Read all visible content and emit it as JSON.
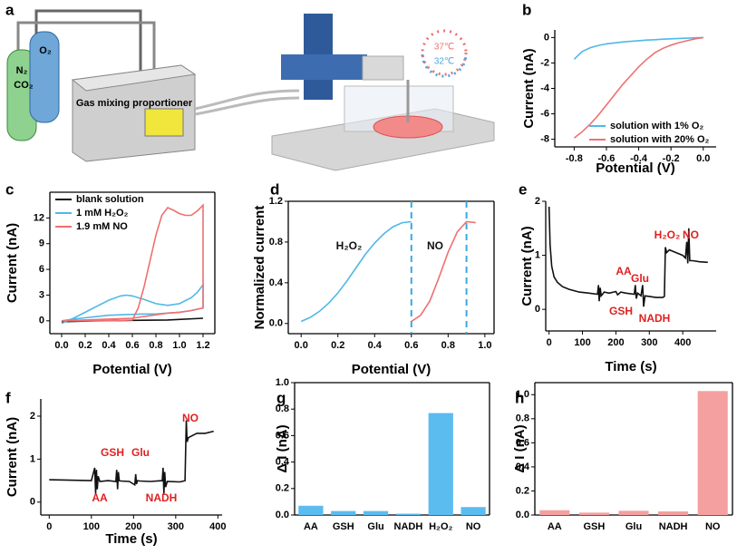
{
  "diagram": {
    "label": "a",
    "o2": "O₂",
    "n2": "N₂",
    "co2": "CO₂",
    "device": "Gas mixing proportioner",
    "t_high": "37℃",
    "t_low": "32℃"
  },
  "chart_data": [
    {
      "type": "line",
      "label": "b",
      "xlabel": "Potential (V)",
      "ylabel": "Current (nA)",
      "frame": "axes",
      "legend": "lower right",
      "x": [
        -0.8,
        -0.75,
        -0.7,
        -0.65,
        -0.6,
        -0.55,
        -0.5,
        -0.45,
        -0.4,
        -0.35,
        -0.3,
        -0.25,
        -0.2,
        -0.15,
        -0.1,
        -0.05,
        0
      ],
      "series": [
        {
          "name": "solution with 1% O₂",
          "color": "#4fb8e8",
          "values": [
            -1.7,
            -1.1,
            -0.8,
            -0.62,
            -0.5,
            -0.42,
            -0.35,
            -0.3,
            -0.25,
            -0.2,
            -0.17,
            -0.13,
            -0.1,
            -0.07,
            -0.05,
            -0.02,
            0
          ]
        },
        {
          "name": "solution with 20% O₂",
          "color": "#f07070",
          "values": [
            -7.9,
            -7.4,
            -6.8,
            -6.1,
            -5.3,
            -4.5,
            -3.7,
            -3.0,
            -2.3,
            -1.7,
            -1.2,
            -0.85,
            -0.6,
            -0.4,
            -0.25,
            -0.1,
            0
          ]
        }
      ],
      "xlim": [
        -0.92,
        0.08
      ],
      "xticks": [
        -0.8,
        -0.6,
        -0.4,
        -0.2,
        {
          "value": 0,
          "label": "0.0"
        }
      ],
      "ylim": [
        -8.6,
        0.6
      ],
      "yticks": [
        0,
        -2,
        -4,
        -6,
        -8
      ]
    },
    {
      "type": "line",
      "label": "c",
      "xlabel": "Potential (V)",
      "ylabel": "Current (nA)",
      "frame": "box",
      "legend": "upper left",
      "series": [
        {
          "name": "blank solution",
          "color": "#111111",
          "x": [
            0,
            0.3,
            0.6,
            0.9,
            1.2
          ],
          "values": [
            -0.1,
            0,
            0.05,
            0.1,
            0.3
          ]
        },
        {
          "name": "1 mM H₂O₂",
          "color": "#4fb8e8",
          "x": [
            0,
            0.1,
            0.2,
            0.3,
            0.4,
            0.5,
            0.55,
            0.6,
            0.7,
            0.8,
            0.9,
            1.0,
            1.1,
            1.15,
            1.2,
            1.2,
            1.1,
            1.0,
            0.9,
            0.8,
            0.7,
            0.6,
            0.5,
            0.4,
            0.3,
            0.2,
            0.1,
            0
          ],
          "values": [
            -0.3,
            0.3,
            1.0,
            1.7,
            2.4,
            2.9,
            3.0,
            2.9,
            2.5,
            2.0,
            1.8,
            2.0,
            2.7,
            3.3,
            4.2,
            1.5,
            1.2,
            1.0,
            0.9,
            0.8,
            0.8,
            0.75,
            0.7,
            0.65,
            0.5,
            0.35,
            0.2,
            0
          ]
        },
        {
          "name": "1.9 mM NO",
          "color": "#f07070",
          "x": [
            0,
            0.2,
            0.4,
            0.6,
            0.65,
            0.7,
            0.75,
            0.8,
            0.85,
            0.9,
            0.95,
            1.0,
            1.05,
            1.1,
            1.15,
            1.2,
            1.2,
            1.1,
            1.0,
            0.9,
            0.8,
            0.7,
            0.6,
            0.4,
            0.2,
            0
          ],
          "values": [
            0,
            0,
            0,
            0.1,
            1.5,
            4.0,
            7.0,
            10.0,
            12.3,
            13.2,
            12.9,
            12.5,
            12.3,
            12.3,
            12.8,
            13.5,
            1.5,
            1.2,
            1.0,
            0.9,
            0.7,
            0.5,
            0.3,
            0.2,
            0.1,
            0
          ]
        }
      ],
      "xlim": [
        -0.1,
        1.3
      ],
      "xticks": [
        {
          "value": 0,
          "label": "0.0"
        },
        0.2,
        0.4,
        0.6,
        0.8,
        {
          "value": 1,
          "label": "1.0"
        },
        1.2
      ],
      "ylim": [
        -1.5,
        15
      ],
      "yticks": [
        0,
        3,
        6,
        9,
        12
      ]
    },
    {
      "type": "line",
      "label": "d",
      "xlabel": "Potential (V)",
      "ylabel": "Normalized current",
      "frame": "box",
      "annotations": [
        "H₂O₂",
        "NO"
      ],
      "annotation_color": "#111111",
      "series": [
        {
          "color": "#4fb8e8",
          "x": [
            0,
            0.05,
            0.1,
            0.15,
            0.2,
            0.25,
            0.3,
            0.35,
            0.4,
            0.45,
            0.5,
            0.55,
            0.6
          ],
          "values": [
            0.02,
            0.06,
            0.12,
            0.2,
            0.3,
            0.42,
            0.55,
            0.68,
            0.79,
            0.88,
            0.95,
            0.99,
            1.0
          ]
        },
        {
          "color": "#f07070",
          "x": [
            0.6,
            0.65,
            0.7,
            0.75,
            0.8,
            0.85,
            0.9,
            0.95
          ],
          "values": [
            0.02,
            0.08,
            0.22,
            0.45,
            0.7,
            0.9,
            1.0,
            0.99
          ]
        }
      ],
      "vlines": [
        0.6,
        0.9
      ],
      "vline_color": "#3aa8e0",
      "xlim": [
        -0.07,
        1.05
      ],
      "xticks": [
        {
          "value": 0,
          "label": "0.0"
        },
        0.2,
        0.4,
        0.6,
        0.8,
        {
          "value": 1,
          "label": "1.0"
        }
      ],
      "ylim": [
        -0.1,
        1.2
      ],
      "yticks": [
        {
          "value": 0,
          "label": "0.0"
        },
        0.4,
        0.8,
        1.2
      ]
    },
    {
      "type": "line",
      "label": "e",
      "xlabel": "Time (s)",
      "ylabel": "Current (nA)",
      "frame": "axes",
      "annotations": [
        "AA",
        "GSH",
        "Glu",
        "NADH",
        "H₂O₂",
        "NO"
      ],
      "annotation_color": "#e02020",
      "x": [
        0,
        3,
        8,
        15,
        25,
        40,
        60,
        90,
        120,
        145,
        148,
        150,
        153,
        156,
        165,
        180,
        200,
        205,
        215,
        230,
        255,
        258,
        261,
        265,
        275,
        280,
        283,
        287,
        300,
        320,
        340,
        345,
        348,
        352,
        360,
        380,
        400,
        408,
        412,
        415,
        418,
        421,
        430,
        450,
        475
      ],
      "series": [
        {
          "color": "#111111",
          "values": [
            1.9,
            1.2,
            0.8,
            0.6,
            0.5,
            0.42,
            0.37,
            0.32,
            0.3,
            0.28,
            0.45,
            0.15,
            0.4,
            0.25,
            0.32,
            0.3,
            0.33,
            0.27,
            0.32,
            0.3,
            0.28,
            0.45,
            0.2,
            0.3,
            0.25,
            0.45,
            0.05,
            0.25,
            0.24,
            0.22,
            0.22,
            0.24,
            1.15,
            1.05,
            1.1,
            1.05,
            1.0,
            0.95,
            1.25,
            0.85,
            1.5,
            0.9,
            0.9,
            0.88,
            0.87
          ]
        }
      ],
      "xlim": [
        -10,
        500
      ],
      "xticks": [
        0,
        100,
        200,
        300,
        400
      ],
      "ylim": [
        -0.4,
        2
      ],
      "yticks": [
        0,
        1,
        2
      ]
    },
    {
      "type": "line",
      "label": "f",
      "xlabel": "Time (s)",
      "ylabel": "Current (nA)",
      "frame": "axes",
      "annotations": [
        "GSH",
        "Glu",
        "AA",
        "NADH",
        "NO"
      ],
      "annotation_color": "#e02020",
      "x": [
        0,
        50,
        100,
        108,
        110,
        112,
        114,
        116,
        120,
        140,
        158,
        160,
        162,
        164,
        166,
        170,
        190,
        203,
        205,
        207,
        209,
        215,
        240,
        268,
        270,
        272,
        274,
        276,
        280,
        310,
        322,
        325,
        327,
        330,
        340,
        350,
        370,
        390
      ],
      "series": [
        {
          "color": "#111111",
          "values": [
            0.52,
            0.51,
            0.5,
            0.8,
            0.2,
            0.75,
            0.3,
            0.6,
            0.48,
            0.5,
            0.48,
            0.75,
            0.3,
            0.7,
            0.5,
            0.49,
            0.48,
            0.4,
            0.65,
            0.42,
            0.5,
            0.49,
            0.48,
            0.5,
            0.8,
            0.2,
            0.7,
            0.35,
            0.48,
            0.47,
            0.5,
            1.9,
            1.4,
            1.5,
            1.55,
            1.6,
            1.6,
            1.65
          ]
        }
      ],
      "xlim": [
        -20,
        410
      ],
      "xticks": [
        0,
        100,
        200,
        300,
        400
      ],
      "ylim": [
        -0.3,
        2.4
      ],
      "yticks": [
        0,
        1,
        2
      ]
    },
    {
      "type": "bar",
      "label": "g",
      "ylabel": "Δ I (nA)",
      "frame": "box",
      "color": "#5bbcf0",
      "categories": [
        "AA",
        "GSH",
        "Glu",
        "NADH",
        "H₂O₂",
        "NO"
      ],
      "values": [
        0.07,
        0.03,
        0.03,
        0.01,
        0.77,
        0.06
      ],
      "ylim": [
        0,
        1
      ],
      "yticks": [
        {
          "value": 0,
          "label": "0.0"
        },
        0.2,
        0.4,
        0.6,
        0.8,
        {
          "value": 1,
          "label": "1.0"
        }
      ]
    },
    {
      "type": "bar",
      "label": "h",
      "ylabel": "Δ I (nA)",
      "frame": "box",
      "color": "#f4a0a0",
      "categories": [
        "AA",
        "GSH",
        "Glu",
        "NADH",
        "NO"
      ],
      "values": [
        0.04,
        0.02,
        0.035,
        0.03,
        1.03
      ],
      "ylim": [
        0,
        1.1
      ],
      "yticks": [
        {
          "value": 0,
          "label": "0.0"
        },
        0.2,
        0.4,
        0.6,
        0.8,
        {
          "value": 1,
          "label": "1.0"
        }
      ]
    }
  ]
}
